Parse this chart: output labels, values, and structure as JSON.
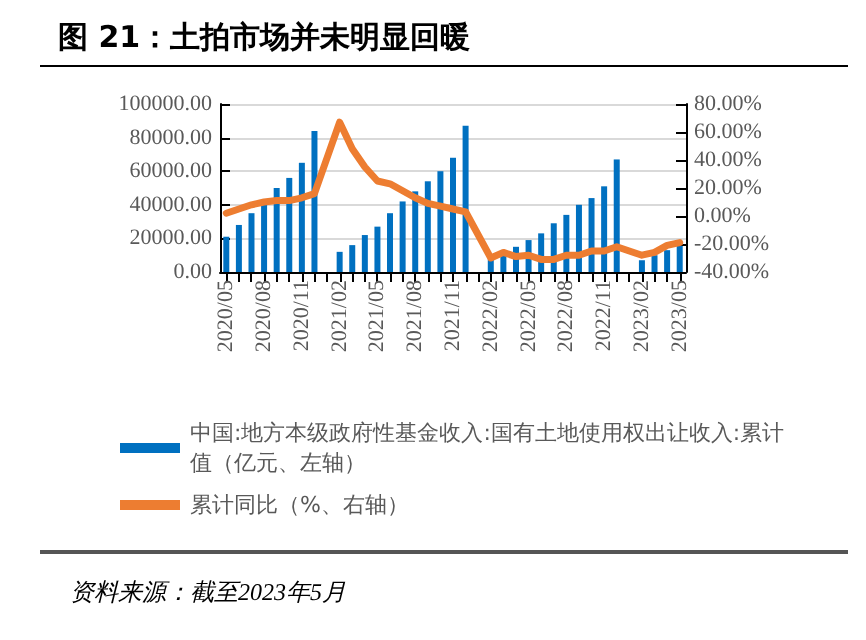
{
  "chart_data": {
    "type": "bar",
    "title": "图 21：土拍市场并未明显回暖",
    "categories": [
      "2020/05",
      null,
      null,
      "2020/08",
      null,
      null,
      "2020/11",
      null,
      null,
      "2021/02",
      null,
      null,
      "2021/05",
      null,
      null,
      "2021/08",
      null,
      null,
      "2021/11",
      null,
      null,
      "2022/02",
      null,
      null,
      "2022/05",
      null,
      null,
      "2022/08",
      null,
      null,
      "2022/11",
      null,
      null,
      "2023/02",
      null,
      null,
      "2023/05"
    ],
    "series": [
      {
        "name": "中国:地方本级政府性基金收入:国有土地使用权出让收入:累计值（亿元、左轴）",
        "color": "#0070c0",
        "values": [
          21000,
          28000,
          35000,
          41000,
          50000,
          56000,
          65000,
          84000,
          null,
          12000,
          16000,
          22000,
          27000,
          35000,
          42000,
          48000,
          54000,
          60000,
          68000,
          87000,
          null,
          7500,
          10000,
          15000,
          19000,
          23000,
          29000,
          34000,
          40000,
          44000,
          51000,
          67000,
          null,
          7000,
          10000,
          13000,
          15500
        ]
      },
      {
        "name": "累计同比（%、右轴）",
        "type": "line",
        "axis": "y2",
        "color": "#ed7d31",
        "values": [
          2,
          5,
          8,
          10,
          11,
          11,
          13,
          16,
          null,
          67,
          48,
          35,
          25,
          23,
          18,
          13,
          9,
          7,
          5,
          3,
          null,
          -30,
          -26,
          -29,
          -28,
          -31,
          -31,
          -28,
          -28,
          -25,
          -25,
          -22,
          null,
          -28,
          -26,
          -21,
          -19
        ]
      }
    ],
    "ylim": [
      0,
      100000
    ],
    "yticks": [
      {
        "value": 0,
        "label": "0.00"
      },
      {
        "value": 20000,
        "label": "20000.00"
      },
      {
        "value": 40000,
        "label": "40000.00"
      },
      {
        "value": 60000,
        "label": "60000.00"
      },
      {
        "value": 80000,
        "label": "80000.00"
      },
      {
        "value": 100000,
        "label": "100000.00"
      }
    ],
    "y2lim": [
      -40,
      80
    ],
    "y2ticks": [
      {
        "value": -40,
        "label": "-40.00%"
      },
      {
        "value": -20,
        "label": "-20.00%"
      },
      {
        "value": 0,
        "label": "0.00%"
      },
      {
        "value": 20,
        "label": "20.00%"
      },
      {
        "value": 40,
        "label": "40.00%"
      },
      {
        "value": 60,
        "label": "60.00%"
      },
      {
        "value": 80,
        "label": "80.00%"
      }
    ],
    "grid": "y",
    "legend": "bottom",
    "marker": "none",
    "line_style": "solid",
    "annotations": [
      "资料来源：截至2023年5月"
    ]
  }
}
